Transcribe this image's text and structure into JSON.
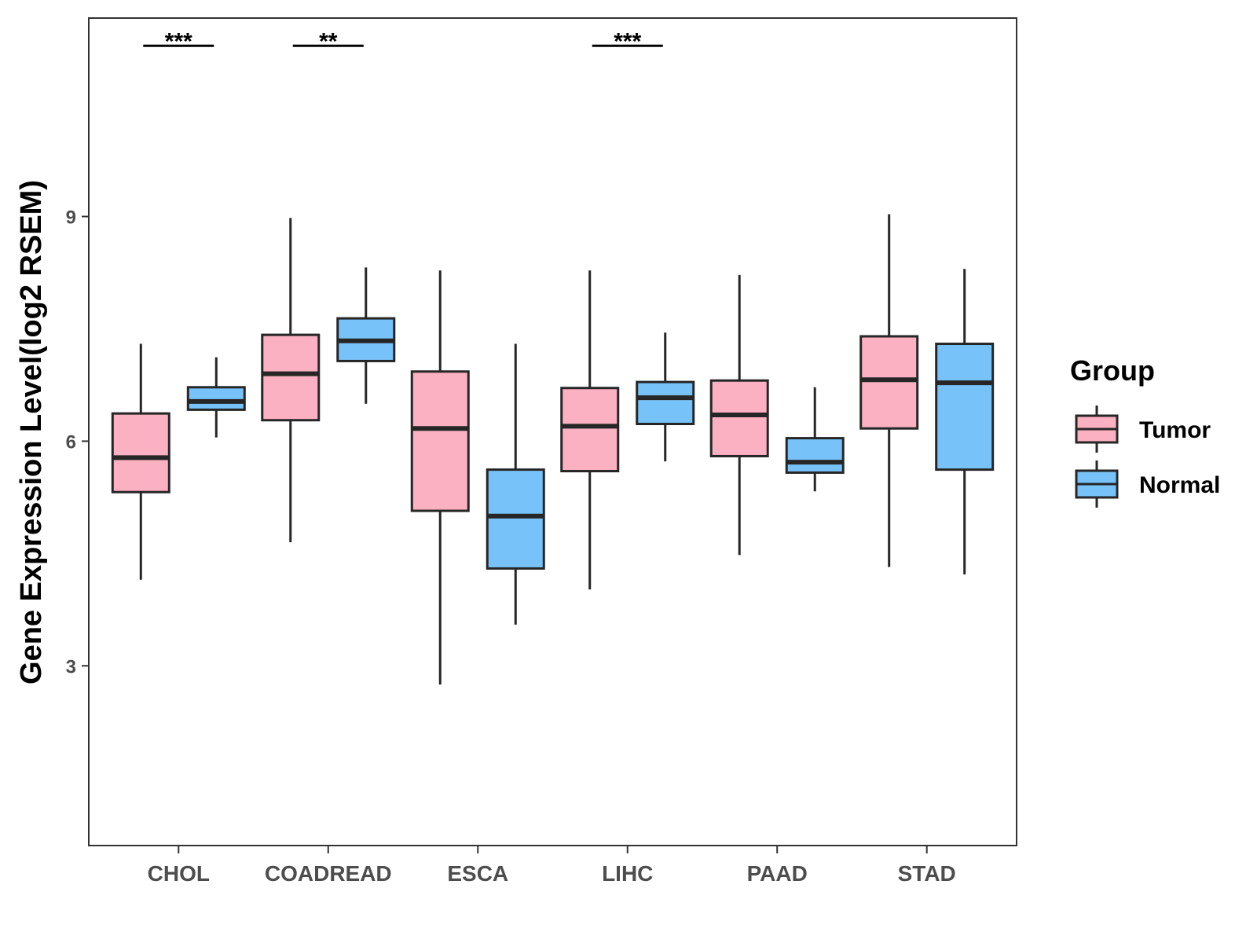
{
  "chart_data": {
    "type": "boxplot",
    "title": "",
    "xlabel": "",
    "ylabel": "Gene Expression Level(log2 RSEM)",
    "ylim": [
      0.6,
      11.65
    ],
    "yticks": [
      3,
      6,
      9
    ],
    "categories": [
      "CHOL",
      "COADREAD",
      "ESCA",
      "LIHC",
      "PAAD",
      "STAD"
    ],
    "series": [
      {
        "name": "Tumor",
        "color": "#FBB1C1",
        "boxes": [
          {
            "min": 4.15,
            "q1": 5.32,
            "median": 5.78,
            "q3": 6.37,
            "max": 7.3
          },
          {
            "min": 4.65,
            "q1": 6.28,
            "median": 6.9,
            "q3": 7.42,
            "max": 8.98
          },
          {
            "min": 2.75,
            "q1": 5.07,
            "median": 6.17,
            "q3": 6.93,
            "max": 8.28
          },
          {
            "min": 4.02,
            "q1": 5.6,
            "median": 6.2,
            "q3": 6.71,
            "max": 8.28
          },
          {
            "min": 4.48,
            "q1": 5.8,
            "median": 6.35,
            "q3": 6.81,
            "max": 8.22
          },
          {
            "min": 4.32,
            "q1": 6.17,
            "median": 6.82,
            "q3": 7.4,
            "max": 9.03
          }
        ]
      },
      {
        "name": "Normal",
        "color": "#77C3F9",
        "boxes": [
          {
            "min": 6.05,
            "q1": 6.42,
            "median": 6.53,
            "q3": 6.72,
            "max": 7.12
          },
          {
            "min": 6.5,
            "q1": 7.07,
            "median": 7.34,
            "q3": 7.64,
            "max": 8.32
          },
          {
            "min": 3.55,
            "q1": 4.3,
            "median": 5.0,
            "q3": 5.62,
            "max": 7.3
          },
          {
            "min": 5.73,
            "q1": 6.23,
            "median": 6.58,
            "q3": 6.79,
            "max": 7.45
          },
          {
            "min": 5.33,
            "q1": 5.58,
            "median": 5.72,
            "q3": 6.04,
            "max": 6.72
          },
          {
            "min": 4.22,
            "q1": 5.62,
            "median": 6.78,
            "q3": 7.3,
            "max": 8.3
          }
        ]
      }
    ],
    "significance": [
      {
        "category": "CHOL",
        "label": "***",
        "y": 11.28
      },
      {
        "category": "COADREAD",
        "label": "**",
        "y": 11.28
      },
      {
        "category": "LIHC",
        "label": "***",
        "y": 11.28
      }
    ],
    "legend": {
      "title": "Group",
      "position": "right",
      "items": [
        {
          "label": "Tumor",
          "color": "#FBB1C1"
        },
        {
          "label": "Normal",
          "color": "#77C3F9"
        }
      ]
    },
    "grid": false
  }
}
